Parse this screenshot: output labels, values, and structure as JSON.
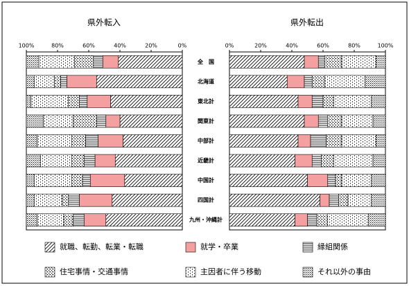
{
  "chart_data": [
    {
      "type": "bar",
      "orientation": "horizontal",
      "stacked": true,
      "title": "県外転入",
      "categories": [
        "全　国",
        "北海道",
        "東北計",
        "関東計",
        "中部計",
        "近畿計",
        "中国計",
        "四国計",
        "九州・沖縄計"
      ],
      "xlim": [
        100,
        0
      ],
      "xticks": [
        {
          "value": 100,
          "label": "100%"
        },
        {
          "value": 80,
          "label": "80%"
        },
        {
          "value": 60,
          "label": "60%"
        },
        {
          "value": 40,
          "label": "40%"
        },
        {
          "value": 20,
          "label": "20%"
        },
        {
          "value": 0,
          "label": "0%"
        }
      ],
      "series": [
        {
          "name": "就職、転勤、転業・転職",
          "pattern": "diagonal",
          "values": [
            41,
            55,
            46,
            40,
            38,
            43,
            37,
            45,
            49
          ]
        },
        {
          "name": "就学・卒業",
          "pattern": "solid",
          "color": "#f4a0a0",
          "values": [
            10,
            19,
            15,
            9,
            16,
            13,
            22,
            21,
            14
          ]
        },
        {
          "name": "縁組関係",
          "pattern": "lines",
          "values": [
            6,
            4,
            5,
            6,
            8,
            7,
            5,
            7,
            7
          ]
        },
        {
          "name": "住宅事情・交通事情",
          "pattern": "dots",
          "values": [
            12,
            4,
            7,
            15,
            9,
            8,
            7,
            4,
            6
          ]
        },
        {
          "name": "主因者に伴う移動",
          "pattern": "fine-dots",
          "values": [
            23,
            13,
            24,
            19,
            22,
            20,
            24,
            18,
            17
          ]
        },
        {
          "name": "それ以外の事由",
          "pattern": "crosshatch",
          "values": [
            8,
            5,
            3,
            11,
            7,
            9,
            5,
            5,
            7
          ]
        }
      ]
    },
    {
      "type": "bar",
      "orientation": "horizontal",
      "stacked": true,
      "title": "県外転出",
      "xlim": [
        0,
        100
      ],
      "xticks": [
        {
          "value": 0,
          "label": "0%"
        },
        {
          "value": 20,
          "label": "20%"
        },
        {
          "value": 40,
          "label": "40%"
        },
        {
          "value": 60,
          "label": "60%"
        },
        {
          "value": 80,
          "label": "80%"
        },
        {
          "value": 100,
          "label": "100%"
        }
      ],
      "series": [
        {
          "values": [
            48,
            37,
            44,
            48,
            44,
            42,
            50,
            58,
            42
          ]
        },
        {
          "values": [
            9,
            11,
            9,
            9,
            8,
            11,
            13,
            6,
            8
          ]
        },
        {
          "values": [
            4,
            5,
            7,
            6,
            10,
            6,
            5,
            6,
            6
          ]
        },
        {
          "values": [
            11,
            8,
            7,
            9,
            10,
            8,
            4,
            6,
            7
          ]
        },
        {
          "values": [
            22,
            26,
            24,
            20,
            22,
            25,
            19,
            15,
            26
          ]
        },
        {
          "values": [
            6,
            13,
            9,
            8,
            6,
            8,
            9,
            9,
            11
          ]
        }
      ]
    }
  ]
}
